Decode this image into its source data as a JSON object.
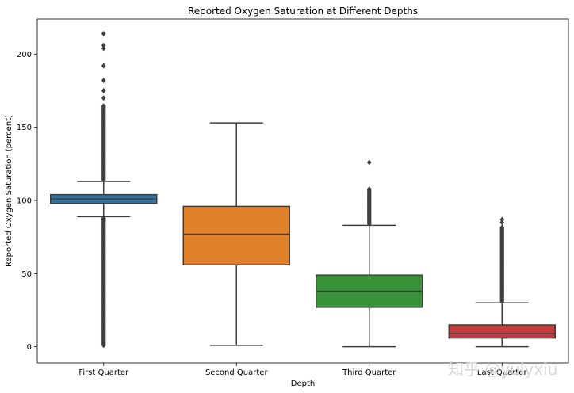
{
  "chart_data": {
    "type": "box",
    "title": "Reported Oxygen Saturation at Different Depths",
    "xlabel": "Depth",
    "ylabel": "Reported Oxygen Saturation (percent)",
    "ylim": [
      -11,
      224
    ],
    "yticks": [
      0,
      50,
      100,
      150,
      200
    ],
    "categories": [
      "First Quarter",
      "Second Quarter",
      "Third Quarter",
      "Last Quarter"
    ],
    "boxes": [
      {
        "name": "First Quarter",
        "color": "#3274a1",
        "whisker_low": 89,
        "q1": 98,
        "median": 101,
        "q3": 104,
        "whisker_high": 113,
        "outliers_low_range": [
          1,
          88
        ],
        "outliers_high_range": [
          114,
          165
        ],
        "outliers_extra": [
          170,
          175,
          182,
          192,
          204,
          206,
          214
        ]
      },
      {
        "name": "Second Quarter",
        "color": "#e1812c",
        "whisker_low": 1,
        "q1": 56,
        "median": 77,
        "q3": 96,
        "whisker_high": 153,
        "outliers_low_range": null,
        "outliers_high_range": null,
        "outliers_extra": []
      },
      {
        "name": "Third Quarter",
        "color": "#3a923a",
        "whisker_low": 0,
        "q1": 27,
        "median": 38,
        "q3": 49,
        "whisker_high": 83,
        "outliers_low_range": null,
        "outliers_high_range": [
          84,
          108
        ],
        "outliers_extra": [
          126
        ]
      },
      {
        "name": "Last Quarter",
        "color": "#c03d3e",
        "whisker_low": 0,
        "q1": 6,
        "median": 9,
        "q3": 15,
        "whisker_high": 30,
        "outliers_low_range": null,
        "outliers_high_range": [
          31,
          82
        ],
        "outliers_extra": [
          85,
          87
        ]
      }
    ]
  },
  "watermark": "知乎 @yulyxiu"
}
